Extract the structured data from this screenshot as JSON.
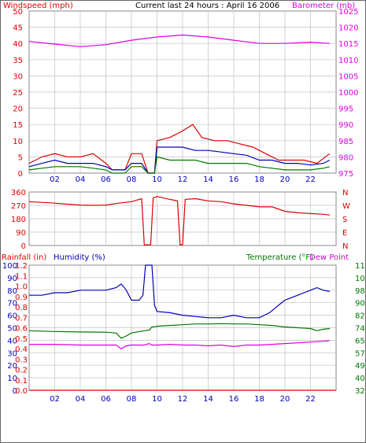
{
  "header": {
    "left_title": "Windspeed (mph)",
    "center_title": "Current last 24 hours : April 16 2006",
    "right_title": "Barometer (mb)"
  },
  "colors": {
    "red": "#dd0000",
    "blue": "#0000bb",
    "green": "#007700",
    "magenta": "#dd00dd",
    "grid": "#c0c0c0",
    "axis": "#888888"
  },
  "x_ticks": [
    "02",
    "04",
    "06",
    "08",
    "10",
    "12",
    "14",
    "16",
    "18",
    "20",
    "22"
  ],
  "chart_data": [
    {
      "type": "line",
      "id": "wind-baro",
      "title": "Current last 24 hours : April 16 2006",
      "xlabel": "",
      "ylabel_left": "Windspeed (mph)",
      "ylabel_right": "Barometer (mb)",
      "xlim": [
        0,
        24
      ],
      "ylim_left": [
        0,
        50
      ],
      "yticks_left": [
        "0",
        "5",
        "10",
        "15",
        "20",
        "25",
        "30",
        "35",
        "40",
        "45",
        "50"
      ],
      "ylim_right": [
        975,
        1025
      ],
      "yticks_right": [
        "975",
        "980",
        "985",
        "990",
        "995",
        "1000",
        "1005",
        "1010",
        "1015",
        "1020",
        "1025"
      ],
      "grid": true,
      "series": [
        {
          "key": "gust",
          "color": "red",
          "axis": "left",
          "values": [
            [
              0,
              3
            ],
            [
              1,
              5
            ],
            [
              2,
              6
            ],
            [
              3,
              5
            ],
            [
              4,
              5
            ],
            [
              5,
              6
            ],
            [
              6,
              3
            ],
            [
              6.5,
              1
            ],
            [
              7.5,
              1
            ],
            [
              8,
              6
            ],
            [
              8.8,
              6
            ],
            [
              9.3,
              0
            ],
            [
              9.8,
              0
            ],
            [
              10,
              10
            ],
            [
              11,
              11
            ],
            [
              12,
              13
            ],
            [
              12.8,
              15
            ],
            [
              13.5,
              11
            ],
            [
              14.5,
              10
            ],
            [
              15.5,
              10
            ],
            [
              16.5,
              9
            ],
            [
              17.5,
              8
            ],
            [
              18.5,
              6
            ],
            [
              19.5,
              4
            ],
            [
              20.5,
              4
            ],
            [
              21.5,
              4
            ],
            [
              22.5,
              3
            ],
            [
              23.5,
              6
            ]
          ]
        },
        {
          "key": "avg",
          "color": "blue",
          "axis": "left",
          "values": [
            [
              0,
              2
            ],
            [
              1,
              3
            ],
            [
              2,
              4
            ],
            [
              3,
              3
            ],
            [
              4,
              3
            ],
            [
              5,
              3
            ],
            [
              6,
              2
            ],
            [
              6.5,
              1
            ],
            [
              7.5,
              1
            ],
            [
              8,
              3
            ],
            [
              8.8,
              3
            ],
            [
              9.3,
              0
            ],
            [
              9.8,
              0
            ],
            [
              10,
              8
            ],
            [
              11,
              8
            ],
            [
              12,
              8
            ],
            [
              13,
              7
            ],
            [
              14,
              7
            ],
            [
              15,
              6.5
            ],
            [
              16,
              6
            ],
            [
              17,
              5.5
            ],
            [
              18,
              4
            ],
            [
              19,
              4
            ],
            [
              20,
              3
            ],
            [
              21,
              3
            ],
            [
              22,
              2.5
            ],
            [
              23,
              3
            ],
            [
              23.5,
              4
            ]
          ]
        },
        {
          "key": "min",
          "color": "green",
          "axis": "left",
          "values": [
            [
              0,
              1
            ],
            [
              1,
              1.5
            ],
            [
              2,
              2
            ],
            [
              3,
              2
            ],
            [
              4,
              2
            ],
            [
              5,
              1.5
            ],
            [
              6,
              1
            ],
            [
              6.5,
              0
            ],
            [
              7.5,
              0
            ],
            [
              8,
              2
            ],
            [
              8.8,
              2
            ],
            [
              9.3,
              0
            ],
            [
              9.8,
              0
            ],
            [
              10,
              5
            ],
            [
              11,
              4
            ],
            [
              12,
              4
            ],
            [
              13,
              4
            ],
            [
              14,
              3
            ],
            [
              15,
              3
            ],
            [
              16,
              3
            ],
            [
              17,
              3
            ],
            [
              18,
              2
            ],
            [
              19,
              1.5
            ],
            [
              20,
              1
            ],
            [
              21,
              1
            ],
            [
              22,
              1
            ],
            [
              23,
              1.5
            ],
            [
              23.5,
              2
            ]
          ]
        },
        {
          "key": "barometer",
          "color": "magenta",
          "axis": "right",
          "values": [
            [
              0,
              1015.6
            ],
            [
              2,
              1014.8
            ],
            [
              4,
              1014.0
            ],
            [
              6,
              1014.6
            ],
            [
              8,
              1016.0
            ],
            [
              10,
              1017.0
            ],
            [
              12,
              1017.6
            ],
            [
              14,
              1017.0
            ],
            [
              16,
              1016.0
            ],
            [
              18,
              1015.0
            ],
            [
              20,
              1015.0
            ],
            [
              22,
              1015.4
            ],
            [
              23.5,
              1015.0
            ]
          ]
        }
      ]
    },
    {
      "type": "line",
      "id": "wind-direction",
      "title": "",
      "xlim": [
        0,
        24
      ],
      "ylim_left": [
        0,
        360
      ],
      "yticks_left": [
        "0",
        "90",
        "180",
        "270",
        "360"
      ],
      "yticks_right": [
        "N",
        "E",
        "S",
        "W",
        "N"
      ],
      "grid": true,
      "series": [
        {
          "key": "direction",
          "color": "red",
          "axis": "left",
          "values": [
            [
              0,
              295
            ],
            [
              1,
              290
            ],
            [
              2,
              285
            ],
            [
              3,
              278
            ],
            [
              4,
              272
            ],
            [
              5,
              270
            ],
            [
              6,
              272
            ],
            [
              7,
              285
            ],
            [
              8,
              295
            ],
            [
              8.8,
              315
            ],
            [
              9.0,
              5
            ],
            [
              9.5,
              5
            ],
            [
              9.7,
              320
            ],
            [
              10,
              330
            ],
            [
              11,
              310
            ],
            [
              11.6,
              300
            ],
            [
              11.8,
              5
            ],
            [
              12.0,
              5
            ],
            [
              12.2,
              310
            ],
            [
              13,
              315
            ],
            [
              14,
              300
            ],
            [
              15,
              295
            ],
            [
              16,
              280
            ],
            [
              17,
              270
            ],
            [
              18,
              260
            ],
            [
              19,
              260
            ],
            [
              20,
              230
            ],
            [
              21,
              220
            ],
            [
              22,
              215
            ],
            [
              23,
              210
            ],
            [
              23.5,
              205
            ]
          ]
        }
      ]
    },
    {
      "type": "line",
      "id": "rain-humidity-temp",
      "title": "",
      "ylabel_left_1": "Rainfall (in)",
      "ylabel_left_2": "Humidity (%)",
      "ylabel_right_1": "Temperature (°F)",
      "ylabel_right_2": "Dew Point",
      "xlim": [
        0,
        24
      ],
      "ylim_humidity": [
        0,
        100
      ],
      "yticks_humidity": [
        "0",
        "10",
        "20",
        "30",
        "40",
        "50",
        "60",
        "70",
        "80",
        "90",
        "100"
      ],
      "ylim_rain": [
        0,
        1.2
      ],
      "yticks_rain": [
        "0.0",
        "0.1",
        "0.2",
        "0.3",
        "0.4",
        "0.5",
        "0.6",
        "0.7",
        "0.8",
        "0.9",
        "1.0",
        "1.1",
        "1.2"
      ],
      "ylim_temp": [
        32,
        115
      ],
      "yticks_temp": [
        "32",
        "40",
        "49",
        "57",
        "65",
        "74",
        "82",
        "90",
        "98",
        "107",
        "115"
      ],
      "grid": true,
      "series": [
        {
          "key": "humidity",
          "color": "blue",
          "axis": "humidity",
          "values": [
            [
              0,
              76
            ],
            [
              1,
              76
            ],
            [
              2,
              78
            ],
            [
              3,
              78
            ],
            [
              4,
              80
            ],
            [
              5,
              80
            ],
            [
              6,
              80
            ],
            [
              6.8,
              82
            ],
            [
              7.2,
              85
            ],
            [
              7.6,
              80
            ],
            [
              8,
              72
            ],
            [
              8.6,
              72
            ],
            [
              8.9,
              76
            ],
            [
              9.1,
              100
            ],
            [
              9.6,
              100
            ],
            [
              9.8,
              68
            ],
            [
              10,
              63
            ],
            [
              11,
              62
            ],
            [
              12,
              60
            ],
            [
              13,
              59
            ],
            [
              14,
              58
            ],
            [
              15,
              58
            ],
            [
              16,
              60
            ],
            [
              17,
              58
            ],
            [
              18,
              58
            ],
            [
              18.8,
              62
            ],
            [
              19.5,
              68
            ],
            [
              20,
              72
            ],
            [
              21,
              76
            ],
            [
              22,
              80
            ],
            [
              22.5,
              82
            ],
            [
              23,
              80
            ],
            [
              23.5,
              79
            ]
          ]
        },
        {
          "key": "temperature",
          "color": "green",
          "axis": "temp",
          "values": [
            [
              0,
              71.5
            ],
            [
              2,
              71
            ],
            [
              4,
              70.7
            ],
            [
              6,
              70.5
            ],
            [
              6.8,
              70
            ],
            [
              7.2,
              66.5
            ],
            [
              7.6,
              68
            ],
            [
              8,
              70
            ],
            [
              9,
              71.5
            ],
            [
              9.4,
              72
            ],
            [
              9.6,
              74
            ],
            [
              10,
              74.5
            ],
            [
              11,
              75
            ],
            [
              12,
              75.5
            ],
            [
              13,
              76
            ],
            [
              14,
              76
            ],
            [
              15,
              76.2
            ],
            [
              16,
              76
            ],
            [
              17,
              76
            ],
            [
              18,
              75.5
            ],
            [
              19,
              75
            ],
            [
              20,
              74
            ],
            [
              21,
              73.5
            ],
            [
              22,
              73
            ],
            [
              22.5,
              71.5
            ],
            [
              23,
              72.5
            ],
            [
              23.5,
              73
            ]
          ]
        },
        {
          "key": "dewpoint",
          "color": "magenta",
          "axis": "temp",
          "values": [
            [
              0,
              62.5
            ],
            [
              2,
              62.5
            ],
            [
              4,
              62
            ],
            [
              6,
              62
            ],
            [
              6.8,
              62
            ],
            [
              7.2,
              59.5
            ],
            [
              7.6,
              61.5
            ],
            [
              8,
              62
            ],
            [
              9,
              62
            ],
            [
              9.4,
              63
            ],
            [
              9.6,
              62
            ],
            [
              10,
              62
            ],
            [
              11,
              62.5
            ],
            [
              12,
              62
            ],
            [
              13,
              62
            ],
            [
              14,
              61.5
            ],
            [
              15,
              62
            ],
            [
              16,
              61
            ],
            [
              17,
              62
            ],
            [
              18,
              62
            ],
            [
              19,
              62.5
            ],
            [
              20,
              63
            ],
            [
              21,
              63.5
            ],
            [
              22,
              64
            ],
            [
              23,
              64.5
            ],
            [
              23.5,
              65
            ]
          ]
        },
        {
          "key": "rainfall",
          "color": "red",
          "axis": "rain",
          "values": [
            [
              0,
              0
            ],
            [
              24,
              0
            ]
          ]
        }
      ]
    }
  ]
}
